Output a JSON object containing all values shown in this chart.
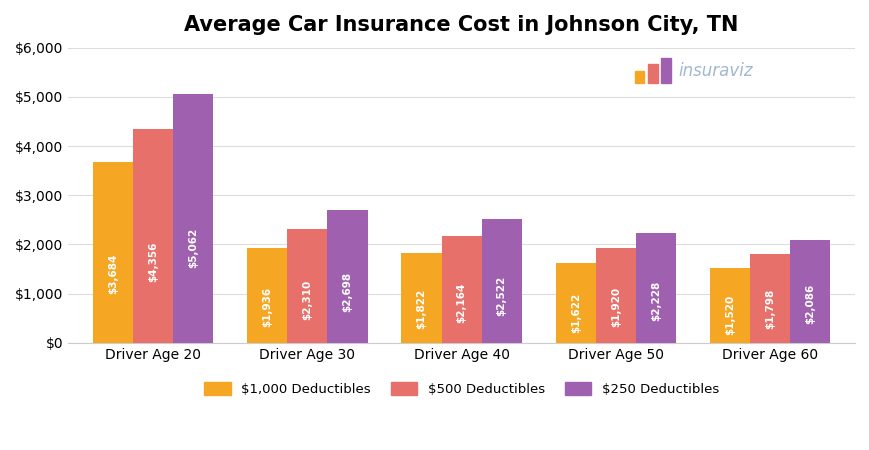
{
  "title": "Average Car Insurance Cost in Johnson City, TN",
  "categories": [
    "Driver Age 20",
    "Driver Age 30",
    "Driver Age 40",
    "Driver Age 50",
    "Driver Age 60"
  ],
  "series": {
    "$1,000 Deductibles": [
      3684,
      1936,
      1822,
      1622,
      1520
    ],
    "$500 Deductibles": [
      4356,
      2310,
      2164,
      1920,
      1798
    ],
    "$250 Deductibles": [
      5062,
      2698,
      2522,
      2228,
      2086
    ]
  },
  "colors": {
    "$1,000 Deductibles": "#F5A623",
    "$500 Deductibles": "#E8706A",
    "$250 Deductibles": "#A060B0"
  },
  "ylim": [
    0,
    6000
  ],
  "yticks": [
    0,
    1000,
    2000,
    3000,
    4000,
    5000,
    6000
  ],
  "ytick_labels": [
    "$0",
    "$1,000",
    "$2,000",
    "$3,000",
    "$4,000",
    "$5,000",
    "$6,000"
  ],
  "bar_text_color": "#FFFFFF",
  "background_color": "#FFFFFF",
  "grid_color": "#DDDDDD",
  "title_fontsize": 15,
  "axis_label_fontsize": 10,
  "bar_value_fontsize": 7.5,
  "legend_fontsize": 9.5,
  "watermark_text": "insuraviz",
  "watermark_color": "#A0B8D0",
  "watermark_icon_colors": [
    "#F5A623",
    "#E8706A",
    "#A060B0"
  ]
}
